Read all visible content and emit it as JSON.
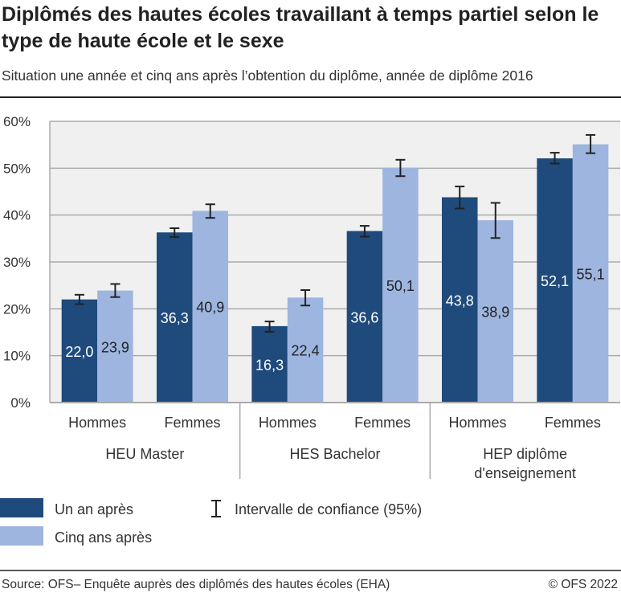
{
  "title": "Diplômés des hautes écoles travaillant à temps partiel selon le type de haute école et le sexe",
  "subtitle": "Situation une année et cinq ans après l’obtention du diplôme, année de diplôme 2016",
  "source": "Source: OFS– Enquête auprès des diplômés des hautes écoles (EHA)",
  "copyright": "© OFS 2022",
  "colors": {
    "un_an": "#1f4a7c",
    "cinq_ans": "#9db5df",
    "plot_bg": "#f0f0f0",
    "grid": "#aaaaaa"
  },
  "chart_data": {
    "type": "bar",
    "ylim": [
      0,
      60
    ],
    "yticks": [
      "0%",
      "10%",
      "20%",
      "30%",
      "40%",
      "50%",
      "60%"
    ],
    "grid": true,
    "legend_position": "bottom-left",
    "groups": [
      {
        "label": [
          "HEU Master"
        ],
        "categories": [
          "Hommes",
          "Femmes"
        ]
      },
      {
        "label": [
          "HES Bachelor"
        ],
        "categories": [
          "Hommes",
          "Femmes"
        ]
      },
      {
        "label": [
          "HEP diplôme",
          "d'enseignement"
        ],
        "categories": [
          "Hommes",
          "Femmes"
        ]
      }
    ],
    "series": [
      {
        "name": "Un an après",
        "values": [
          22.0,
          36.3,
          16.3,
          36.6,
          43.8,
          52.1
        ],
        "labels": [
          "22,0",
          "36,3",
          "16,3",
          "36,6",
          "43,8",
          "52,1"
        ],
        "ci": [
          [
            21.0,
            23.0
          ],
          [
            35.3,
            37.2
          ],
          [
            15.1,
            17.3
          ],
          [
            35.4,
            37.7
          ],
          [
            41.4,
            46.1
          ],
          [
            51.0,
            53.3
          ]
        ]
      },
      {
        "name": "Cinq ans après",
        "values": [
          23.9,
          40.9,
          22.4,
          50.1,
          38.9,
          55.1
        ],
        "labels": [
          "23,9",
          "40,9",
          "22,4",
          "50,1",
          "38,9",
          "55,1"
        ],
        "ci": [
          [
            22.5,
            25.3
          ],
          [
            39.4,
            42.3
          ],
          [
            20.7,
            24.0
          ],
          [
            48.3,
            51.8
          ],
          [
            35.1,
            42.6
          ],
          [
            53.2,
            57.1
          ]
        ]
      }
    ],
    "ci_legend": "Intervalle de confiance (95%)"
  }
}
